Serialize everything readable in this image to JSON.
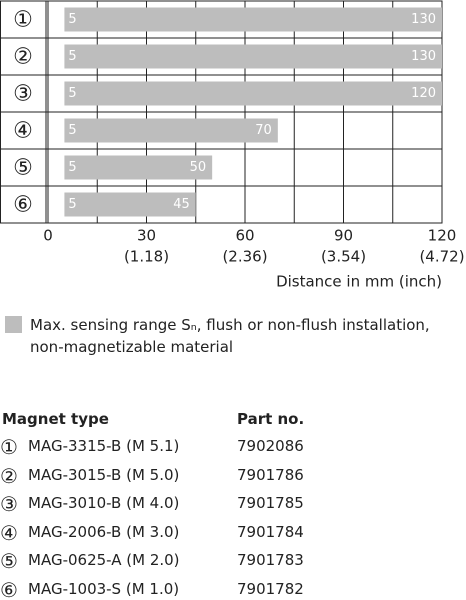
{
  "chart_data": {
    "type": "range-bar",
    "categories": [
      "①",
      "②",
      "③",
      "④",
      "⑤",
      "⑥"
    ],
    "series": [
      {
        "name": "Max. sensing range Sₙ, flush or non-flush installation, non-magnetizable material",
        "color": "#bdbdbd",
        "starts": [
          5,
          5,
          5,
          5,
          5,
          5
        ],
        "values": [
          130,
          130,
          120,
          70,
          50,
          45
        ]
      }
    ],
    "xlim": [
      0,
      120
    ],
    "xticks": [
      0,
      30,
      60,
      90,
      120
    ],
    "minor_xticks": [
      15,
      45,
      75,
      105
    ],
    "xtick_inch_labels": [
      null,
      "(1.18)",
      "(2.36)",
      "(3.54)",
      "(4.72)"
    ],
    "xlabel": "Distance in mm (inch)",
    "grid": true
  },
  "table": {
    "header": [
      "Magnet type",
      "Part no."
    ],
    "rows": [
      [
        "①",
        "MAG-3315-B (M 5.1)",
        "7902086"
      ],
      [
        "②",
        "MAG-3015-B (M 5.0)",
        "7901786"
      ],
      [
        "③",
        "MAG-3010-B (M 4.0)",
        "7901785"
      ],
      [
        "④",
        "MAG-2006-B (M 3.0)",
        "7901784"
      ],
      [
        "⑤",
        "MAG-0625-A (M 2.0)",
        "7901783"
      ],
      [
        "⑥",
        "MAG-1003-S (M 1.0)",
        "7901782"
      ]
    ]
  }
}
